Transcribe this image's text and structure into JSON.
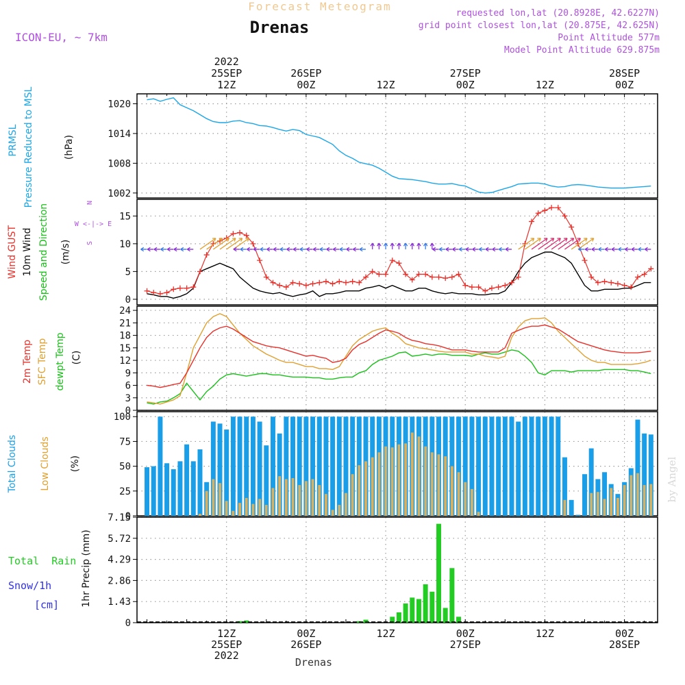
{
  "header": {
    "forecast_title": "Forecast Meteogram",
    "location": "Drenas",
    "model": "ICON-EU, ~ 7km",
    "requested": "requested lon,lat (20.8928E, 42.6227N)",
    "closest": "grid point closest lon,lat (20.875E, 42.625N)",
    "point_alt": "Point Altitude 577m",
    "model_alt": "Model Point Altitude 629.875m",
    "footer_location": "Drenas",
    "watermark": "by Angel"
  },
  "time_axis": {
    "top_labels": [
      {
        "h": 12,
        "lines": [
          "2022",
          "25SEP",
          "12Z"
        ]
      },
      {
        "h": 24,
        "lines": [
          "26SEP",
          "00Z"
        ]
      },
      {
        "h": 36,
        "lines": [
          "12Z"
        ]
      },
      {
        "h": 48,
        "lines": [
          "27SEP",
          "00Z"
        ]
      },
      {
        "h": 60,
        "lines": [
          "12Z"
        ]
      },
      {
        "h": 72,
        "lines": [
          "28SEP",
          "00Z"
        ]
      }
    ],
    "bottom_labels": [
      {
        "h": 12,
        "lines": [
          "12Z",
          "25SEP",
          "2022"
        ]
      },
      {
        "h": 24,
        "lines": [
          "00Z",
          "26SEP"
        ]
      },
      {
        "h": 36,
        "lines": [
          "12Z"
        ]
      },
      {
        "h": 48,
        "lines": [
          "00Z",
          "27SEP"
        ]
      },
      {
        "h": 60,
        "lines": [
          "12Z"
        ]
      },
      {
        "h": 72,
        "lines": [
          "00Z",
          "28SEP"
        ]
      }
    ]
  },
  "labels": {
    "p1": {
      "name1": "PRMSL",
      "name2": "Pressure Reduced to MSL",
      "unit": "(hPa)"
    },
    "p2": {
      "gust": "Wind GUST",
      "wind": "10m Wind",
      "dir": "Speed and Direction",
      "unit": "(m/s)",
      "compass_n": "N",
      "compass_s": "S",
      "compass_we": "W <-|-> E"
    },
    "p3": {
      "t2m": "2m Temp",
      "sfc": "SFC Temp",
      "dew": "dewpt Temp",
      "unit": "(C)"
    },
    "p4": {
      "total": "Total Clouds",
      "low": "Low Clouds",
      "unit": "(%)"
    },
    "p5": {
      "rain": "Total  Rain",
      "snow": "Snow/1h",
      "cm": "[cm]",
      "unit": "1hr Precip (mm)"
    }
  },
  "colors": {
    "pressure": "#1aa6e8",
    "gust": "#e8302a",
    "wind": "#000000",
    "t2m": "#e8302a",
    "sfc": "#e0a030",
    "dew": "#18c018",
    "total_clouds": "#1a9ee8",
    "low_clouds": "#d8b060",
    "precip": "#22cc22",
    "purple": "#b050e0",
    "snow": "#3030e8"
  },
  "chart_data": [
    {
      "type": "line",
      "title": "PRMSL Pressure Reduced to MSL",
      "ylabel": "(hPa)",
      "ylim": [
        1001,
        1022
      ],
      "yticks": [
        1002,
        1008,
        1014,
        1020
      ],
      "x_hours": [
        0,
        1,
        2,
        3,
        4,
        5,
        6,
        7,
        8,
        9,
        10,
        11,
        12,
        13,
        14,
        15,
        16,
        17,
        18,
        19,
        20,
        21,
        22,
        23,
        24,
        25,
        26,
        27,
        28,
        29,
        30,
        31,
        32,
        33,
        34,
        35,
        36,
        37,
        38,
        39,
        40,
        41,
        42,
        43,
        44,
        45,
        46,
        47,
        48,
        49,
        50,
        51,
        52,
        53,
        54,
        55,
        56,
        57,
        58,
        59,
        60,
        61,
        62,
        63,
        64,
        65,
        66,
        67,
        68,
        69,
        70,
        71,
        72,
        73,
        74,
        75,
        76
      ],
      "series": [
        {
          "name": "PRMSL",
          "values": [
            1020.8,
            1021.0,
            1020.5,
            1020.9,
            1021.2,
            1019.8,
            1019.2,
            1018.6,
            1017.8,
            1017.0,
            1016.4,
            1016.2,
            1016.2,
            1016.5,
            1016.6,
            1016.2,
            1016.0,
            1015.6,
            1015.5,
            1015.2,
            1014.8,
            1014.5,
            1014.8,
            1014.6,
            1013.8,
            1013.5,
            1013.2,
            1012.5,
            1011.8,
            1010.5,
            1009.6,
            1009.0,
            1008.2,
            1007.9,
            1007.6,
            1007.0,
            1006.2,
            1005.4,
            1004.9,
            1004.8,
            1004.7,
            1004.5,
            1004.3,
            1004.0,
            1003.8,
            1003.8,
            1003.9,
            1003.6,
            1003.4,
            1002.8,
            1002.2,
            1002.0,
            1002.1,
            1002.5,
            1002.9,
            1003.3,
            1003.8,
            1003.9,
            1004.0,
            1004.0,
            1003.8,
            1003.4,
            1003.2,
            1003.3,
            1003.6,
            1003.7,
            1003.6,
            1003.4,
            1003.2,
            1003.1,
            1003.0,
            1003.0,
            1003.0,
            1003.1,
            1003.2,
            1003.3,
            1003.4
          ]
        }
      ]
    },
    {
      "type": "line",
      "title": "Wind GUST / 10m Wind Speed and Direction",
      "ylabel": "(m/s)",
      "ylim": [
        -1,
        18
      ],
      "yticks": [
        0,
        5,
        10,
        15
      ],
      "x_hours": [
        0,
        1,
        2,
        3,
        4,
        5,
        6,
        7,
        8,
        9,
        10,
        11,
        12,
        13,
        14,
        15,
        16,
        17,
        18,
        19,
        20,
        21,
        22,
        23,
        24,
        25,
        26,
        27,
        28,
        29,
        30,
        31,
        32,
        33,
        34,
        35,
        36,
        37,
        38,
        39,
        40,
        41,
        42,
        43,
        44,
        45,
        46,
        47,
        48,
        49,
        50,
        51,
        52,
        53,
        54,
        55,
        56,
        57,
        58,
        59,
        60,
        61,
        62,
        63,
        64,
        65,
        66,
        67,
        68,
        69,
        70,
        71,
        72,
        73,
        74,
        75,
        76
      ],
      "series": [
        {
          "name": "Wind GUST",
          "values": [
            1.5,
            1.2,
            1.0,
            1.2,
            1.8,
            2.0,
            2.0,
            2.2,
            5.0,
            8.0,
            10.0,
            10.5,
            11.0,
            11.8,
            12.0,
            11.5,
            10.0,
            7.0,
            4.0,
            3.0,
            2.5,
            2.2,
            3.0,
            2.8,
            2.5,
            2.8,
            3.0,
            3.2,
            2.8,
            3.2,
            3.0,
            3.2,
            3.0,
            4.0,
            5.0,
            4.5,
            4.5,
            7.0,
            6.5,
            4.5,
            3.5,
            4.5,
            4.5,
            4.0,
            4.0,
            3.8,
            4.0,
            4.5,
            2.5,
            2.2,
            2.2,
            1.5,
            2.0,
            2.2,
            2.5,
            3.0,
            4.0,
            10.0,
            14.0,
            15.5,
            16.0,
            16.5,
            16.5,
            15.0,
            13.0,
            10.0,
            7.0,
            4.0,
            3.0,
            3.2,
            3.0,
            2.8,
            2.5,
            2.2,
            4.0,
            4.5,
            5.5
          ]
        },
        {
          "name": "10m Wind",
          "values": [
            1.0,
            0.8,
            0.5,
            0.5,
            0.2,
            0.5,
            1.0,
            2.0,
            5.0,
            5.5,
            6.0,
            6.5,
            6.0,
            5.5,
            4.0,
            3.0,
            2.0,
            1.5,
            1.2,
            1.0,
            1.2,
            0.8,
            0.5,
            0.8,
            1.0,
            1.5,
            0.5,
            1.0,
            1.0,
            1.2,
            1.5,
            1.5,
            1.5,
            2.0,
            2.2,
            2.5,
            2.0,
            2.5,
            2.0,
            1.5,
            1.5,
            2.0,
            2.0,
            1.5,
            1.2,
            1.0,
            1.2,
            1.0,
            1.0,
            1.0,
            0.8,
            0.8,
            1.0,
            1.0,
            1.5,
            3.0,
            5.0,
            6.5,
            7.5,
            8.0,
            8.5,
            8.5,
            8.0,
            7.5,
            6.5,
            4.5,
            2.5,
            1.5,
            1.5,
            1.8,
            1.8,
            1.8,
            2.0,
            2.0,
            2.5,
            3.0,
            3.0
          ]
        }
      ],
      "wind_direction_arrows": "per-hour direction arrows along y=9"
    },
    {
      "type": "line",
      "title": "2m Temp / SFC Temp / dewpt Temp",
      "ylabel": "(C)",
      "ylim": [
        0,
        25
      ],
      "yticks": [
        0,
        3,
        6,
        9,
        12,
        15,
        18,
        21,
        24
      ],
      "x_hours": [
        0,
        1,
        2,
        3,
        4,
        5,
        6,
        7,
        8,
        9,
        10,
        11,
        12,
        13,
        14,
        15,
        16,
        17,
        18,
        19,
        20,
        21,
        22,
        23,
        24,
        25,
        26,
        27,
        28,
        29,
        30,
        31,
        32,
        33,
        34,
        35,
        36,
        37,
        38,
        39,
        40,
        41,
        42,
        43,
        44,
        45,
        46,
        47,
        48,
        49,
        50,
        51,
        52,
        53,
        54,
        55,
        56,
        57,
        58,
        59,
        60,
        61,
        62,
        63,
        64,
        65,
        66,
        67,
        68,
        69,
        70,
        71,
        72,
        73,
        74,
        75,
        76
      ],
      "series": [
        {
          "name": "2m Temp",
          "values": [
            6.0,
            5.8,
            5.5,
            5.8,
            6.2,
            6.5,
            9.0,
            12.0,
            15.0,
            17.5,
            19.0,
            19.8,
            20.2,
            19.5,
            18.5,
            17.5,
            16.5,
            16.0,
            15.5,
            15.2,
            15.0,
            14.5,
            14.0,
            13.5,
            13.0,
            13.2,
            12.8,
            12.5,
            11.5,
            11.8,
            12.5,
            14.5,
            15.8,
            16.5,
            17.5,
            18.5,
            19.3,
            19.0,
            18.5,
            17.5,
            16.8,
            16.5,
            16.0,
            15.8,
            15.5,
            15.0,
            14.5,
            14.5,
            14.5,
            14.2,
            14.0,
            14.0,
            14.0,
            14.0,
            15.0,
            18.5,
            19.2,
            19.8,
            20.2,
            20.2,
            20.5,
            20.0,
            19.5,
            18.5,
            17.5,
            16.5,
            16.0,
            15.5,
            15.0,
            14.5,
            14.2,
            14.0,
            13.8,
            13.8,
            13.8,
            14.0,
            14.2
          ]
        },
        {
          "name": "SFC Temp",
          "values": [
            2.0,
            1.8,
            1.5,
            2.0,
            2.5,
            3.5,
            9.0,
            15.0,
            18.0,
            21.0,
            22.5,
            23.2,
            22.5,
            20.5,
            18.5,
            17.0,
            15.5,
            14.5,
            13.5,
            12.8,
            12.0,
            11.5,
            11.5,
            11.0,
            10.5,
            10.5,
            10.0,
            10.0,
            9.8,
            10.5,
            13.0,
            15.5,
            17.0,
            18.0,
            19.0,
            19.5,
            19.8,
            18.5,
            17.5,
            16.0,
            15.5,
            15.0,
            14.8,
            14.5,
            14.2,
            14.0,
            14.0,
            14.0,
            14.0,
            13.5,
            13.5,
            13.0,
            12.8,
            12.5,
            13.0,
            17.5,
            20.0,
            21.5,
            22.0,
            22.0,
            22.2,
            21.0,
            19.0,
            17.5,
            16.0,
            14.5,
            13.0,
            12.0,
            11.5,
            11.5,
            11.0,
            11.0,
            11.0,
            11.0,
            11.2,
            11.5,
            12.0
          ]
        },
        {
          "name": "dewpt Temp",
          "values": [
            1.8,
            1.5,
            2.0,
            2.2,
            3.0,
            4.0,
            6.5,
            4.5,
            2.5,
            4.5,
            5.8,
            7.5,
            8.5,
            8.8,
            8.5,
            8.2,
            8.5,
            8.8,
            8.8,
            8.5,
            8.5,
            8.2,
            8.0,
            8.0,
            8.0,
            7.8,
            7.8,
            7.5,
            7.5,
            7.8,
            8.0,
            8.0,
            9.0,
            9.5,
            11.0,
            12.0,
            12.5,
            13.0,
            13.8,
            14.0,
            13.0,
            13.2,
            13.5,
            13.2,
            13.5,
            13.5,
            13.2,
            13.2,
            13.2,
            13.0,
            13.5,
            13.8,
            13.5,
            13.5,
            14.0,
            14.5,
            14.2,
            13.0,
            11.5,
            9.0,
            8.5,
            9.5,
            9.5,
            9.5,
            9.2,
            9.5,
            9.5,
            9.5,
            9.5,
            9.8,
            9.8,
            9.8,
            9.8,
            9.5,
            9.5,
            9.2,
            8.8
          ]
        }
      ]
    },
    {
      "type": "bar",
      "title": "Total Clouds / Low Clouds",
      "ylabel": "(%)",
      "ylim": [
        0,
        105
      ],
      "yticks": [
        0,
        25,
        50,
        75,
        100
      ],
      "x_hours": [
        0,
        1,
        2,
        3,
        4,
        5,
        6,
        7,
        8,
        9,
        10,
        11,
        12,
        13,
        14,
        15,
        16,
        17,
        18,
        19,
        20,
        21,
        22,
        23,
        24,
        25,
        26,
        27,
        28,
        29,
        30,
        31,
        32,
        33,
        34,
        35,
        36,
        37,
        38,
        39,
        40,
        41,
        42,
        43,
        44,
        45,
        46,
        47,
        48,
        49,
        50,
        51,
        52,
        53,
        54,
        55,
        56,
        57,
        58,
        59,
        60,
        61,
        62,
        63,
        64,
        65,
        66,
        67,
        68,
        69,
        70,
        71,
        72,
        73,
        74,
        75,
        76
      ],
      "series": [
        {
          "name": "Total Clouds",
          "values": [
            49,
            50,
            100,
            53,
            47,
            55,
            72,
            55,
            67,
            34,
            95,
            93,
            87,
            100,
            100,
            100,
            100,
            95,
            71,
            100,
            83,
            100,
            100,
            100,
            100,
            100,
            100,
            100,
            100,
            100,
            100,
            100,
            100,
            100,
            100,
            100,
            100,
            100,
            100,
            100,
            100,
            100,
            100,
            100,
            100,
            100,
            100,
            100,
            100,
            100,
            100,
            100,
            100,
            100,
            100,
            100,
            95,
            100,
            100,
            100,
            100,
            100,
            100,
            59,
            16,
            1,
            42,
            68,
            37,
            44,
            32,
            22,
            34,
            48,
            97,
            83,
            82
          ]
        },
        {
          "name": "Low Clouds",
          "values": [
            0,
            0,
            0,
            0,
            0,
            0,
            0,
            0,
            2,
            25,
            37,
            33,
            15,
            5,
            13,
            18,
            12,
            17,
            11,
            28,
            40,
            37,
            38,
            31,
            35,
            37,
            31,
            22,
            6,
            11,
            23,
            42,
            51,
            55,
            59,
            64,
            70,
            69,
            72,
            73,
            84,
            80,
            70,
            64,
            62,
            60,
            50,
            44,
            34,
            27,
            4,
            0,
            0,
            0,
            0,
            0,
            0,
            0,
            0,
            0,
            0,
            0,
            0,
            16,
            0,
            0,
            0,
            23,
            24,
            17,
            28,
            18,
            31,
            41,
            43,
            31,
            32
          ]
        }
      ]
    },
    {
      "type": "bar",
      "title": "Total Rain 1hr Precip",
      "ylabel": "1hr Precip (mm)",
      "ylim": [
        0,
        7.15
      ],
      "yticks": [
        0,
        1.43,
        2.86,
        4.29,
        5.72,
        7.15
      ],
      "x_hours": [
        14,
        15,
        32,
        33,
        37,
        38,
        39,
        40,
        41,
        42,
        43,
        44,
        45,
        46,
        47,
        48
      ],
      "series": [
        {
          "name": "Total Rain",
          "values": [
            0.1,
            0.15,
            0.1,
            0.2,
            0.4,
            0.7,
            1.3,
            1.7,
            1.6,
            2.6,
            2.1,
            6.7,
            1.0,
            3.7,
            0.4,
            0.0
          ]
        }
      ]
    }
  ]
}
